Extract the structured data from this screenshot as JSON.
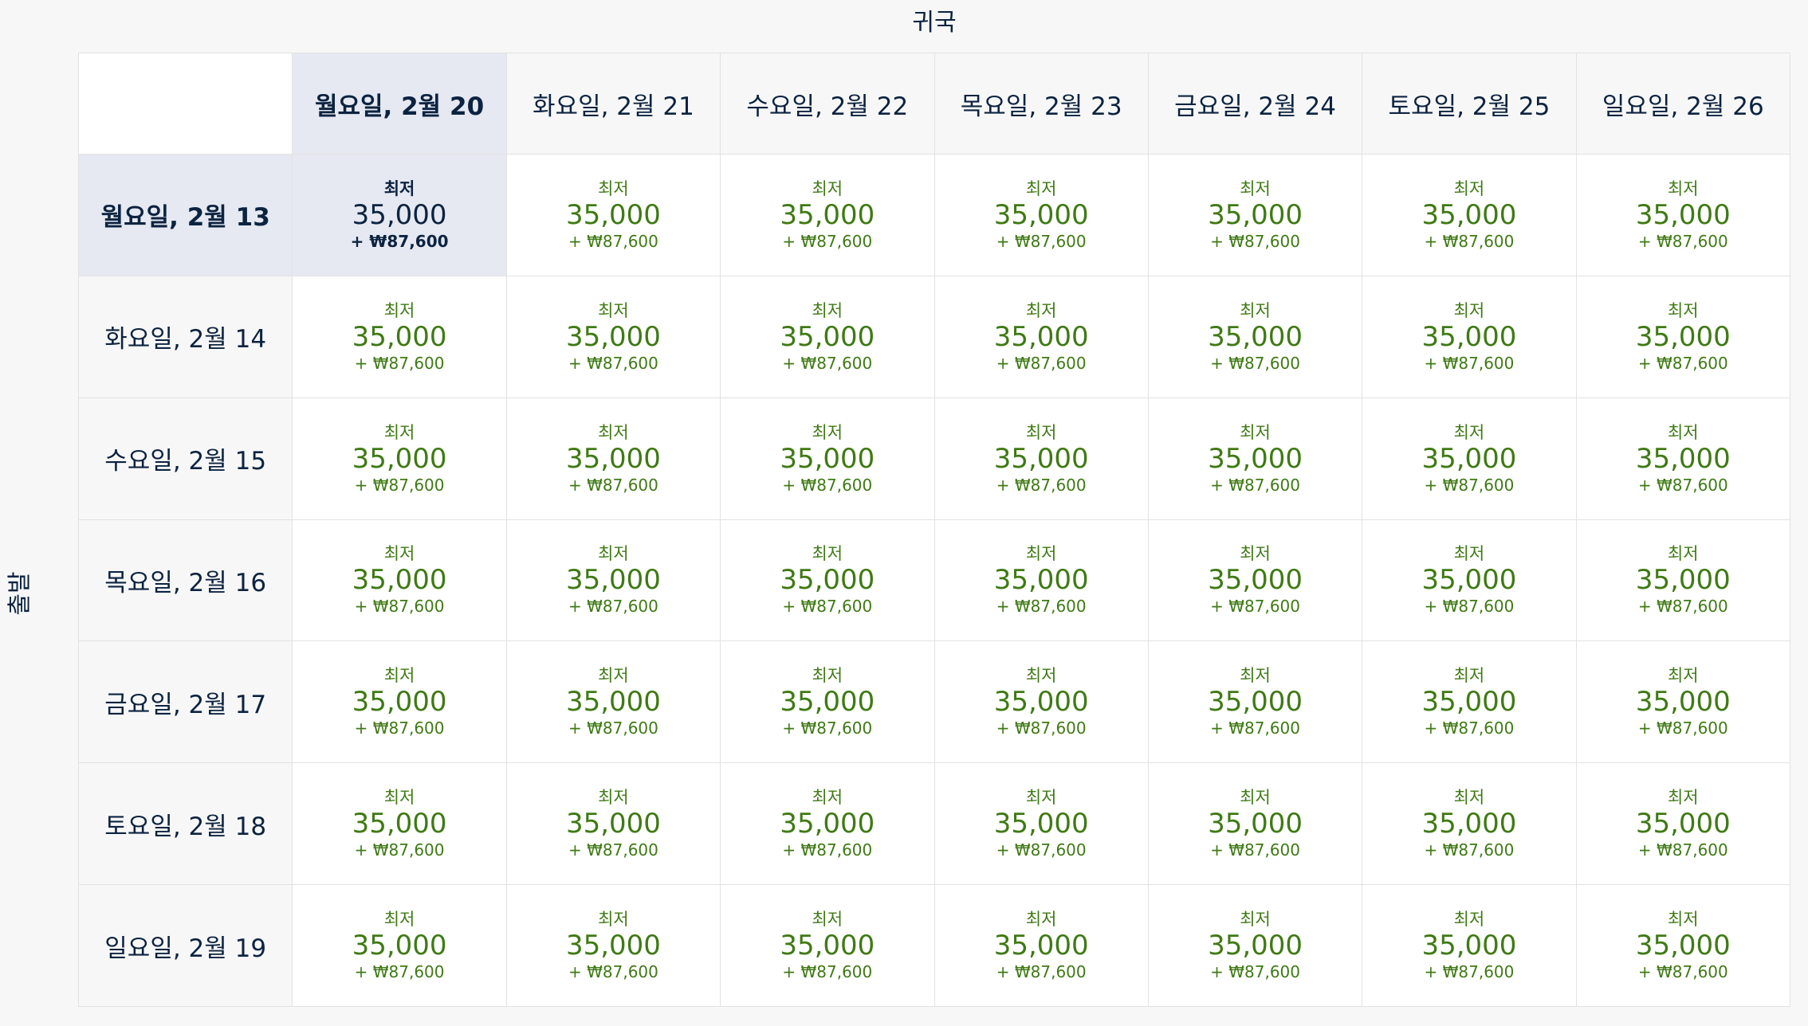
{
  "return_label": "귀국",
  "depart_label": "출발",
  "return_dates": [
    "월요일, 2월 20",
    "화요일, 2월 21",
    "수요일, 2월 22",
    "목요일, 2월 23",
    "금요일, 2월 24",
    "토요일, 2월 25",
    "일요일, 2월 26"
  ],
  "depart_dates": [
    "월요일, 2월 13",
    "화요일, 2월 14",
    "수요일, 2월 15",
    "목요일, 2월 16",
    "금요일, 2월 17",
    "토요일, 2월 18",
    "일요일, 2월 19"
  ],
  "selected": {
    "depart_index": 0,
    "return_index": 0
  },
  "fare": {
    "tag": "최저",
    "miles": "35,000",
    "fee": "+ ₩87,600"
  },
  "colors": {
    "navy": "#0c2340",
    "price_green": "#3f7a14",
    "selected_bg": "#e6e9f2",
    "header_bg": "#f7f7f7"
  }
}
